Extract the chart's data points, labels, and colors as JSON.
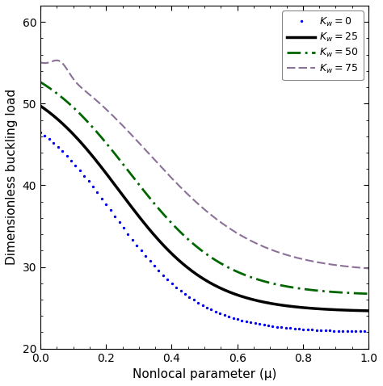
{
  "title": "",
  "xlabel": "Nonlocal parameter (μ)",
  "ylabel": "Dimensionless buckling load",
  "xlim": [
    0,
    1.0
  ],
  "ylim": [
    20,
    62
  ],
  "yticks": [
    20,
    30,
    40,
    50,
    60
  ],
  "xticks": [
    0.0,
    0.2,
    0.4,
    0.6,
    0.8,
    1.0
  ],
  "legend_labels": [
    "K_w=0",
    "K_w=25",
    "K_w=50",
    "K_w=75"
  ],
  "colors": [
    "#0000EE",
    "#000000",
    "#006600",
    "#8B7098"
  ],
  "linestyles": [
    "dotted",
    "solid",
    "dashdot",
    "dashed"
  ],
  "linewidths": [
    2.0,
    2.5,
    2.0,
    1.5
  ],
  "background_color": "#FFFFFF",
  "curve_params": [
    [
      51.2,
      22.0,
      0.22,
      7.5,
      0.0,
      0.0
    ],
    [
      54.2,
      24.5,
      0.24,
      7.2,
      0.0,
      0.0
    ],
    [
      56.8,
      26.5,
      0.27,
      6.8,
      0.0,
      0.0
    ],
    [
      58.5,
      29.3,
      0.33,
      6.0,
      1.5,
      0.06
    ]
  ]
}
